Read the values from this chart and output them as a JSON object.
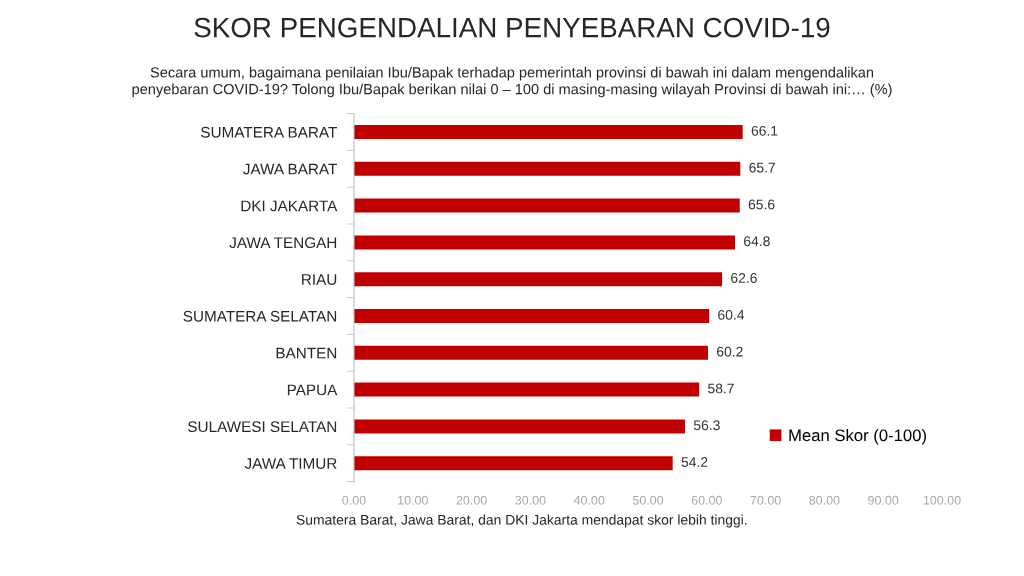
{
  "chart_data": {
    "type": "bar",
    "orientation": "horizontal",
    "title": "SKOR PENGENDALIAN PENYEBARAN COVID-19",
    "subtitle": "Secara umum, bagaimana penilaian Ibu/Bapak terhadap pemerintah provinsi di bawah ini dalam mengendalikan\npenyebaran COVID-19? Tolong Ibu/Bapak berikan nilai 0 – 100 di masing-masing wilayah Provinsi di bawah ini:… (%)",
    "categories": [
      "SUMATERA BARAT",
      "JAWA BARAT",
      "DKI JAKARTA",
      "JAWA TENGAH",
      "RIAU",
      "SUMATERA SELATAN",
      "BANTEN",
      "PAPUA",
      "SULAWESI SELATAN",
      "JAWA TIMUR"
    ],
    "series": [
      {
        "name": "Mean Skor (0-100)",
        "color": "#c00000",
        "values": [
          66.1,
          65.7,
          65.6,
          64.8,
          62.6,
          60.4,
          60.2,
          58.7,
          56.3,
          54.2
        ]
      }
    ],
    "xlim": [
      0,
      100
    ],
    "xticks": [
      {
        "value": 0,
        "label": "0.00"
      },
      {
        "value": 10,
        "label": "10.00"
      },
      {
        "value": 20,
        "label": "20.00"
      },
      {
        "value": 30,
        "label": "30.00"
      },
      {
        "value": 40,
        "label": "40.00"
      },
      {
        "value": 50,
        "label": "50.00"
      },
      {
        "value": 60,
        "label": "60.00"
      },
      {
        "value": 70,
        "label": "70.00"
      },
      {
        "value": 80,
        "label": "80.00"
      },
      {
        "value": 90,
        "label": "90.00"
      },
      {
        "value": 100,
        "label": "100.00"
      }
    ],
    "data_labels": true,
    "legend": "bottom right",
    "grid": false,
    "annotations": [
      "Sumatera Barat, Jawa Barat, dan DKI Jakarta mendapat skor lebih tinggi."
    ]
  }
}
